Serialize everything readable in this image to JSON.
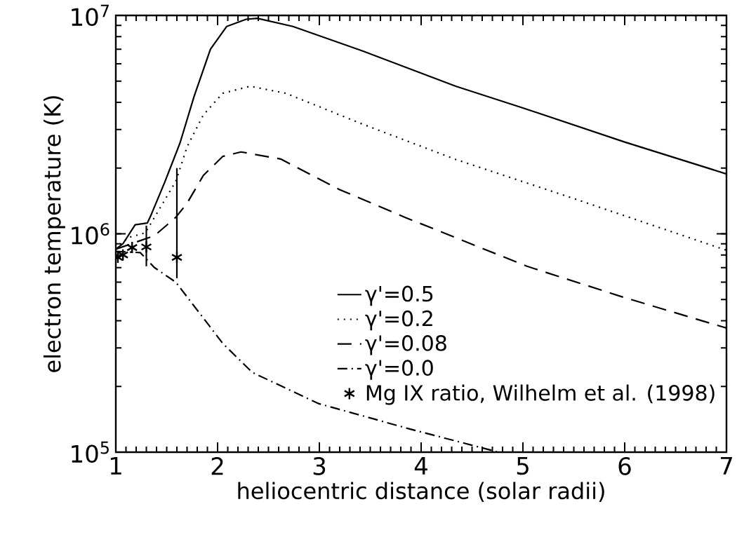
{
  "chart_data": {
    "type": "line",
    "xlabel": "heliocentric distance (solar radii)",
    "ylabel": "electron temperature (K)",
    "xlim": [
      1,
      7
    ],
    "xticks": [
      1,
      2,
      3,
      4,
      5,
      6,
      7
    ],
    "ylim": [
      100000,
      10000000
    ],
    "yticks": [
      {
        "value": 100000,
        "label": "10$^{5}$"
      },
      {
        "value": 1000000,
        "label": "10$^{6}$"
      },
      {
        "value": 10000000,
        "label": "10$^{7}$"
      }
    ],
    "log": "y",
    "grid": false,
    "legend": "bottom right",
    "series": [
      {
        "name": "γ'=0.5",
        "color": "#000000",
        "line_style": "solid",
        "marker": "none",
        "x": [
          1.0,
          1.07,
          1.19,
          1.31,
          1.34,
          1.48,
          1.63,
          1.77,
          1.93,
          2.09,
          2.28,
          2.39,
          2.74,
          3.43,
          4.34,
          5.0,
          6.0,
          7.0
        ],
        "values": [
          850000,
          900000,
          1100000,
          1120000,
          1200000,
          1720000,
          2600000,
          4270000,
          7000000,
          8900000,
          9600000,
          9700000,
          8900000,
          6860000,
          4740000,
          3770000,
          2630000,
          1880000
        ]
      },
      {
        "name": "γ'=0.2",
        "color": "#000000",
        "line_style": "dotted",
        "marker": "none",
        "x": [
          1.0,
          1.12,
          1.29,
          1.59,
          1.7,
          1.86,
          2.05,
          2.32,
          2.67,
          3.43,
          4.34,
          5.5,
          7.0
        ],
        "values": [
          850000,
          960000,
          1010000,
          1740000,
          2500000,
          3500000,
          4400000,
          4740000,
          4400000,
          3170000,
          2190000,
          1450000,
          840000
        ]
      },
      {
        "name": "γ'=0.08",
        "color": "#000000",
        "line_style": "dashed",
        "marker": "none",
        "x": [
          1.0,
          1.38,
          1.59,
          1.7,
          1.86,
          2.05,
          2.23,
          2.62,
          3.19,
          3.84,
          5.04,
          6.0,
          7.0
        ],
        "values": [
          850000,
          980000,
          1190000,
          1380000,
          1850000,
          2260000,
          2370000,
          2200000,
          1600000,
          1190000,
          710000,
          510000,
          370000
        ]
      },
      {
        "name": "γ'=0.0",
        "color": "#000000",
        "line_style": "dashdot",
        "marker": "none",
        "x": [
          1.0,
          1.24,
          1.38,
          1.59,
          1.72,
          1.88,
          2.05,
          2.34,
          2.99,
          3.88,
          4.76
        ],
        "values": [
          830000,
          820000,
          700000,
          600000,
          500000,
          400000,
          315000,
          232000,
          167000,
          128000,
          100000
        ]
      },
      {
        "name": "Mg IX ratio, Wilhelm et al. (1998)",
        "type": "scatter",
        "color": "#000000",
        "marker": "cross",
        "x": [
          1.02,
          1.07,
          1.16,
          1.3,
          1.6
        ],
        "values": [
          780000,
          800000,
          865000,
          870000,
          780000
        ],
        "errors": [
          null,
          null,
          null,
          [
            710000,
            1090000
          ],
          [
            626000,
            2000000
          ]
        ]
      }
    ]
  }
}
